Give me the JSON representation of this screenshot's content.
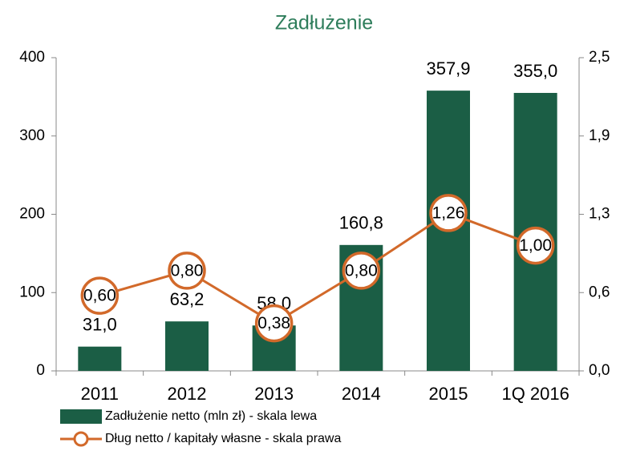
{
  "chart_data": {
    "type": "bar_line",
    "title": "Zadłużenie",
    "categories": [
      "2011",
      "2012",
      "2013",
      "2014",
      "2015",
      "1Q 2016"
    ],
    "series": [
      {
        "name": "Zadłużenie netto (mln zł) - skala lewa",
        "type": "bar",
        "color": "#1b5e45",
        "values": [
          31.0,
          63.2,
          58.0,
          160.8,
          357.9,
          355.0
        ],
        "value_labels": [
          "31,0",
          "63,2",
          "58,0",
          "160,8",
          "357,9",
          "355,0"
        ]
      },
      {
        "name": "Dług netto / kapitały własne - skala prawa",
        "type": "line",
        "axis": "y2",
        "color": "#d2692a",
        "values": [
          0.6,
          0.8,
          0.38,
          0.8,
          1.26,
          1.0
        ],
        "value_labels": [
          "0,60",
          "0,80",
          "0,38",
          "0,80",
          "1,26",
          "1,00"
        ]
      }
    ],
    "ylim": [
      0,
      400
    ],
    "yticks": [
      0,
      100,
      200,
      300,
      400
    ],
    "y2lim": [
      0,
      2.5
    ],
    "y2ticks": [
      {
        "value": 0,
        "label": "0,0"
      },
      {
        "value": 0.625,
        "label": "0,6"
      },
      {
        "value": 1.25,
        "label": "1,3"
      },
      {
        "value": 1.875,
        "label": "1,9"
      },
      {
        "value": 2.5,
        "label": "2,5"
      }
    ],
    "legend": "bottom-left"
  }
}
